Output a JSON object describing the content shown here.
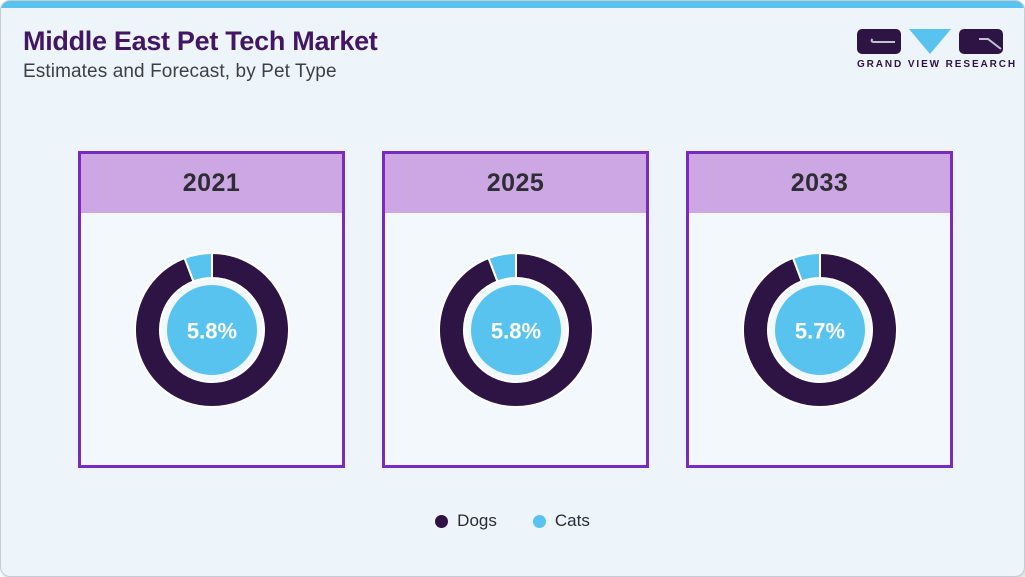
{
  "page": {
    "title": "Middle East Pet Tech Market",
    "subtitle": "Estimates and Forecast, by Pet Type"
  },
  "logo": {
    "text": "GRAND VIEW RESEARCH"
  },
  "colors": {
    "accent_blue": "#58c3ee",
    "dark_purple": "#2e1445",
    "lavender_header": "#cda6e4",
    "card_border": "#7a2abc",
    "title_purple": "#431664",
    "center_label_text": "#ffffff"
  },
  "chart_data": {
    "type": "pie",
    "subtype": "donut",
    "unit": "%",
    "legend_position": "bottom",
    "legend": [
      {
        "label": "Dogs",
        "color": "#2e1445"
      },
      {
        "label": "Cats",
        "color": "#58c3ee"
      }
    ],
    "charts": [
      {
        "title": "2021",
        "center_label": "5.8%",
        "slices": [
          {
            "label": "Dogs",
            "value": 94.2
          },
          {
            "label": "Cats",
            "value": 5.8
          }
        ]
      },
      {
        "title": "2025",
        "center_label": "5.8%",
        "slices": [
          {
            "label": "Dogs",
            "value": 94.2
          },
          {
            "label": "Cats",
            "value": 5.8
          }
        ]
      },
      {
        "title": "2033",
        "center_label": "5.7%",
        "slices": [
          {
            "label": "Dogs",
            "value": 94.3
          },
          {
            "label": "Cats",
            "value": 5.7
          }
        ]
      }
    ]
  }
}
